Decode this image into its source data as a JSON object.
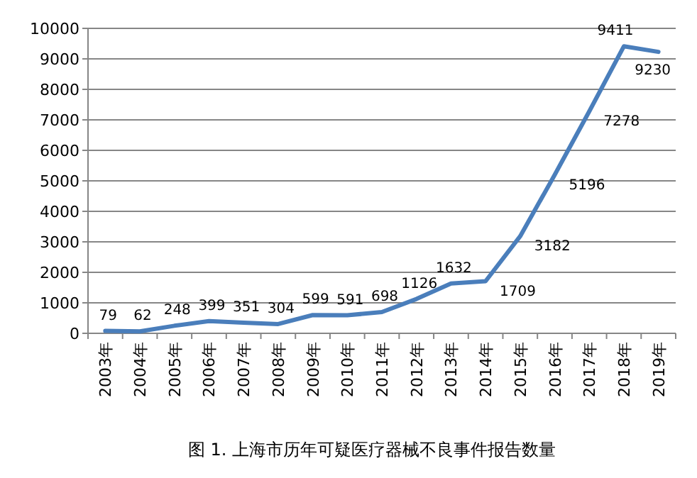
{
  "chart_data": {
    "type": "line",
    "annotations": [
      "图 1. 上海市历年可疑医疗器械不良事件报告数量"
    ],
    "categories": [
      "2003年",
      "2004年",
      "2005年",
      "2006年",
      "2007年",
      "2008年",
      "2009年",
      "2010年",
      "2011年",
      "2012年",
      "2013年",
      "2014年",
      "2015年",
      "2016年",
      "2017年",
      "2018年",
      "2019年"
    ],
    "series": [
      {
        "color": "#4a7ebb",
        "values": [
          79,
          62,
          248,
          399,
          351,
          304,
          599,
          591,
          698,
          1126,
          1632,
          1709,
          3182,
          5196,
          7278,
          9411,
          9230
        ]
      }
    ],
    "ylim": [
      0,
      10000
    ],
    "yticks": [
      0,
      1000,
      2000,
      3000,
      4000,
      5000,
      6000,
      7000,
      8000,
      9000,
      10000
    ],
    "grid": "y",
    "marker": "none",
    "line_style": "solid",
    "data_labels": true
  }
}
